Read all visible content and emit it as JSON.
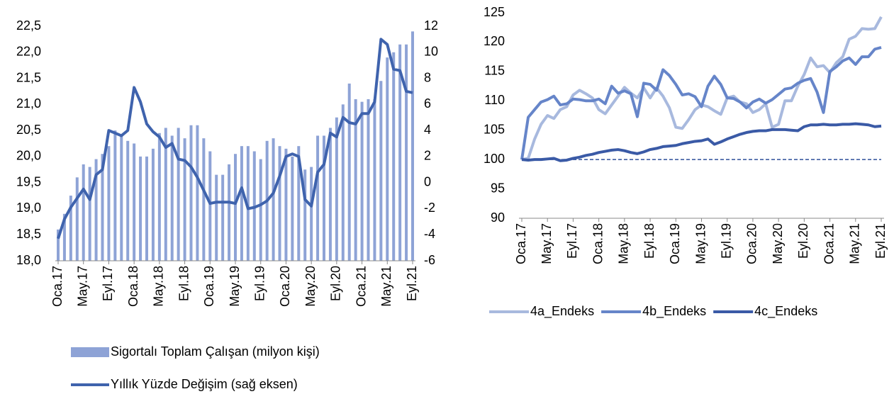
{
  "chart_data": [
    {
      "type": "combo",
      "categories": [
        "Oca.17",
        null,
        null,
        null,
        "May.17",
        null,
        null,
        null,
        "Eyl.17",
        null,
        null,
        null,
        "Oca.18",
        null,
        null,
        null,
        "May.18",
        null,
        null,
        null,
        "Eyl.18",
        null,
        null,
        null,
        "Oca.19",
        null,
        null,
        null,
        "May.19",
        null,
        null,
        null,
        "Eyl.19",
        null,
        null,
        null,
        "Oca.20",
        null,
        null,
        null,
        "May.20",
        null,
        null,
        null,
        "Eyl.20",
        null,
        null,
        null,
        "Oca.21",
        null,
        null,
        null,
        "May.21",
        null,
        null,
        null,
        "Eyl.21"
      ],
      "series": [
        {
          "name": "Sigortalı Toplam Çalışan (milyon kişi)",
          "type": "bar",
          "color": "#8ea3d6",
          "values": [
            18.6,
            18.9,
            19.25,
            19.6,
            19.85,
            19.8,
            19.95,
            20.05,
            20.2,
            20.5,
            20.4,
            20.3,
            20.25,
            20.0,
            20.0,
            20.15,
            20.45,
            20.55,
            20.4,
            20.55,
            20.35,
            20.6,
            20.6,
            20.35,
            20.1,
            19.65,
            19.65,
            19.85,
            20.05,
            20.2,
            20.2,
            20.1,
            19.95,
            20.3,
            20.35,
            20.2,
            20.15,
            20.0,
            20.2,
            19.75,
            19.8,
            20.4,
            20.4,
            20.55,
            20.75,
            21.0,
            21.4,
            21.1,
            21.05,
            21.1,
            21.1,
            21.45,
            21.9,
            22.0,
            22.15,
            22.15,
            22.4
          ]
        },
        {
          "name": "Yıllık Yüzde Değişim (sağ eksen)",
          "type": "line",
          "axis": "y2",
          "color": "#3f63ad",
          "values": [
            -4.3,
            -2.8,
            -1.9,
            -1.2,
            -0.5,
            -1.3,
            0.6,
            1.0,
            4.0,
            3.8,
            3.6,
            4.0,
            7.3,
            6.2,
            4.5,
            3.9,
            3.5,
            2.7,
            3.0,
            1.8,
            1.7,
            1.2,
            0.4,
            -0.6,
            -1.6,
            -1.5,
            -1.5,
            -1.5,
            -1.6,
            -0.4,
            -2.0,
            -1.9,
            -1.7,
            -1.4,
            -0.8,
            0.5,
            2.0,
            2.2,
            2.0,
            -1.3,
            -1.8,
            0.8,
            1.4,
            3.8,
            3.5,
            5.0,
            4.6,
            4.5,
            5.3,
            5.3,
            6.2,
            11.0,
            10.6,
            8.7,
            8.6,
            7.0,
            6.9
          ]
        }
      ],
      "ylim": [
        18,
        22.5
      ],
      "yticks": [
        {
          "value": 18,
          "label": "18,0"
        },
        {
          "value": 18.5,
          "label": "18,5"
        },
        {
          "value": 19,
          "label": "19,0"
        },
        {
          "value": 19.5,
          "label": "19,5"
        },
        {
          "value": 20,
          "label": "20,0"
        },
        {
          "value": 20.5,
          "label": "20,5"
        },
        {
          "value": 21,
          "label": "21,0"
        },
        {
          "value": 21.5,
          "label": "21,5"
        },
        {
          "value": 22,
          "label": "22,0"
        },
        {
          "value": 22.5,
          "label": "22,5"
        }
      ],
      "y2lim": [
        -6,
        12
      ],
      "y2ticks": [
        -6,
        -4,
        -2,
        0,
        2,
        4,
        6,
        8,
        10,
        12
      ],
      "legend": "bottom"
    },
    {
      "type": "line",
      "categories": [
        "Oca.17",
        null,
        null,
        null,
        "May.17",
        null,
        null,
        null,
        "Eyl.17",
        null,
        null,
        null,
        "Oca.18",
        null,
        null,
        null,
        "May.18",
        null,
        null,
        null,
        "Eyl.18",
        null,
        null,
        null,
        "Oca.19",
        null,
        null,
        null,
        "May.19",
        null,
        null,
        null,
        "Eyl.19",
        null,
        null,
        null,
        "Oca.20",
        null,
        null,
        null,
        "May.20",
        null,
        null,
        null,
        "Eyl.20",
        null,
        null,
        null,
        "Oca.21",
        null,
        null,
        null,
        "May.21",
        null,
        null,
        null,
        "Eyl.21"
      ],
      "series": [
        {
          "name": "4a_Endeks",
          "color": "#a8b9de",
          "values": [
            100,
            100.2,
            103.5,
            106,
            107.5,
            107,
            108.5,
            109,
            111,
            111.8,
            111.2,
            110.5,
            108.5,
            107.8,
            109.3,
            110.8,
            112.3,
            111.3,
            110.5,
            112.2,
            110.5,
            112.2,
            110.8,
            108.8,
            105.5,
            105.3,
            106.8,
            108.5,
            109.3,
            109,
            108.3,
            107.7,
            110.5,
            110.8,
            109.8,
            109.5,
            108,
            108.5,
            109.5,
            105.5,
            106,
            110,
            110,
            112.5,
            114.5,
            117.3,
            115.8,
            116,
            114.8,
            116.5,
            117.5,
            120.5,
            121,
            122.3,
            122.2,
            122.3,
            124.3
          ]
        },
        {
          "name": "4b_Endeks",
          "color": "#6685c9",
          "values": [
            100,
            107.2,
            108.5,
            109.8,
            110.2,
            110.8,
            109.3,
            109.5,
            110.3,
            110.2,
            110,
            110,
            110.3,
            109.5,
            112.5,
            111.3,
            111.7,
            111.2,
            107.3,
            113,
            112.8,
            111.8,
            115.3,
            114.3,
            112.8,
            111,
            111.2,
            110.7,
            109,
            112.5,
            114.2,
            112.8,
            110.5,
            110.4,
            109.8,
            108.8,
            109.8,
            110.3,
            109.6,
            110.2,
            111.1,
            112,
            112.2,
            113,
            113.5,
            113.8,
            111.5,
            108,
            115,
            115.8,
            116.8,
            117.3,
            116.2,
            117.5,
            117.5,
            118.8,
            119.1
          ]
        },
        {
          "name": "4c_Endeks",
          "color": "#3a5aa6",
          "values": [
            100,
            99.9,
            100,
            100,
            100.1,
            100.2,
            99.8,
            99.9,
            100.2,
            100.4,
            100.7,
            100.9,
            101.2,
            101.4,
            101.6,
            101.7,
            101.5,
            101.2,
            101,
            101.3,
            101.7,
            101.9,
            102.2,
            102.3,
            102.4,
            102.7,
            102.9,
            103.1,
            103.2,
            103.5,
            102.6,
            103,
            103.5,
            103.9,
            104.3,
            104.6,
            104.8,
            104.9,
            104.9,
            105.1,
            105.1,
            105.1,
            105,
            104.9,
            105.6,
            105.9,
            105.9,
            106,
            105.9,
            105.9,
            106,
            106,
            106.1,
            106,
            105.9,
            105.6,
            105.7
          ]
        }
      ],
      "reference_line": 100,
      "ylim": [
        90,
        125
      ],
      "yticks": [
        90,
        95,
        100,
        105,
        110,
        115,
        120,
        125
      ],
      "legend": "bottom"
    }
  ]
}
